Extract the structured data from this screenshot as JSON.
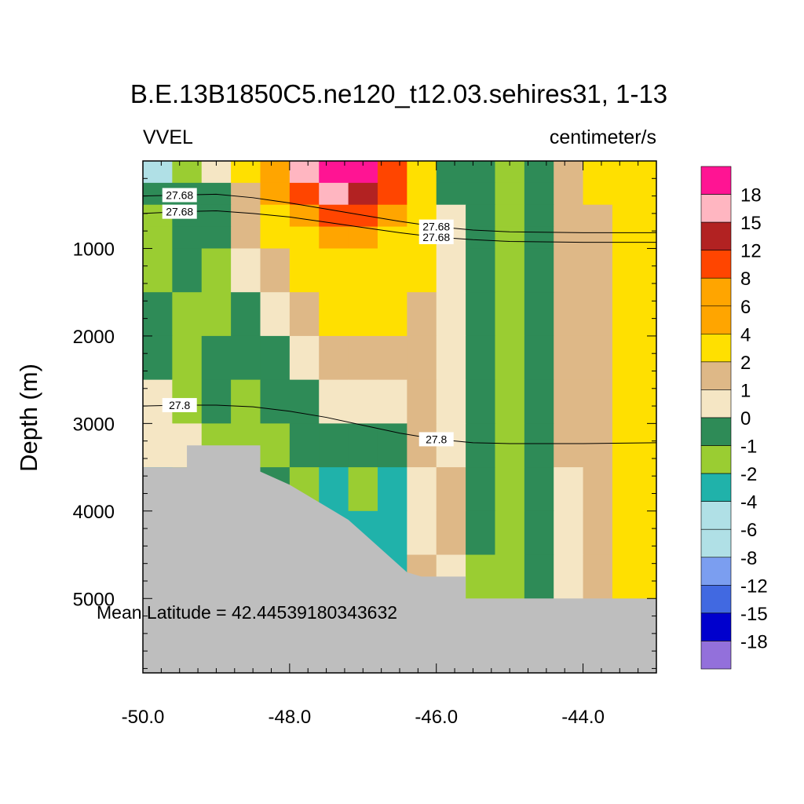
{
  "chart_data": {
    "type": "heatmap",
    "title": "B.E.13B1850C5.ne120_t12.03.sehires31, 1-13",
    "left_label": "VVEL",
    "right_label": "centimeter/s",
    "xlabel": "",
    "ylabel": "Depth (m)",
    "xlim": [
      -50.0,
      -43.0
    ],
    "ylim": [
      5850,
      0
    ],
    "x_ticks": [
      -50.0,
      -48.0,
      -46.0,
      -44.0
    ],
    "x_tick_labels": [
      "-50.0",
      "-48.0",
      "-46.0",
      "-44.0"
    ],
    "y_ticks": [
      1000,
      2000,
      3000,
      4000,
      5000
    ],
    "y_tick_labels": [
      "1000",
      "2000",
      "3000",
      "4000",
      "5000"
    ],
    "annotation": "Mean Latitude = 42.44539180343632",
    "colorbar": {
      "levels": [
        "18",
        "15",
        "12",
        "8",
        "6",
        "4",
        "2",
        "1",
        "0",
        "-1",
        "-2",
        "-4",
        "-6",
        "-8",
        "-12",
        "-15",
        "-18"
      ],
      "colors": [
        "#FF1493",
        "#FFB6C1",
        "#B22222",
        "#FF4500",
        "#FFA500",
        "#FFA500",
        "#FFE000",
        "#DEB887",
        "#F5E6C4",
        "#2E8B57",
        "#9ACD32",
        "#20B2AA",
        "#B0E0E6",
        "#B0E0E6",
        "#7B9EF0",
        "#4169E1",
        "#0000CD",
        "#9370DB"
      ]
    },
    "contours": [
      {
        "label": "27.68",
        "x": [
          -50.0,
          -49.5,
          -49.0,
          -48.5,
          -48.0,
          -47.5,
          -47.0,
          -46.5,
          -46.0,
          -45.5,
          -45.0,
          -44.0,
          -43.0
        ],
        "y": [
          600,
          580,
          570,
          600,
          640,
          700,
          760,
          820,
          870,
          900,
          920,
          930,
          930
        ]
      },
      {
        "label": "27.68",
        "x": [
          -50.0,
          -49.5,
          -49.0,
          -48.5,
          -48.0,
          -47.5,
          -47.0,
          -46.5,
          -46.0,
          -45.5,
          -45.0,
          -44.0,
          -43.0
        ],
        "y": [
          400,
          390,
          380,
          420,
          480,
          550,
          620,
          690,
          750,
          790,
          810,
          820,
          820
        ]
      },
      {
        "label": "27.8",
        "x": [
          -50.0,
          -49.5,
          -49.0,
          -48.5,
          -48.0,
          -47.5,
          -47.0,
          -46.5,
          -46.0,
          -45.5,
          -45.0,
          -44.0,
          -43.0
        ],
        "y": [
          2800,
          2790,
          2790,
          2810,
          2860,
          2930,
          3020,
          3110,
          3180,
          3220,
          3230,
          3230,
          3220
        ]
      }
    ],
    "bathymetry": {
      "x": [
        -50.0,
        -49.4,
        -49.4,
        -48.4,
        -48.4,
        -48.0,
        -47.8,
        -47.6,
        -47.4,
        -47.2,
        -47.0,
        -46.8,
        -46.6,
        -46.4,
        -46.2,
        -46.0,
        -45.6,
        -45.6,
        -43.0
      ],
      "y": [
        3500,
        3500,
        3250,
        3250,
        3550,
        3700,
        3800,
        3900,
        4000,
        4100,
        4250,
        4400,
        4550,
        4700,
        4750,
        4750,
        4750,
        5000,
        5000
      ]
    },
    "field": {
      "x_edges": [
        -50.0,
        -49.6,
        -49.2,
        -48.8,
        -48.4,
        -48.0,
        -47.6,
        -47.2,
        -46.8,
        -46.4,
        -46.0,
        -45.6,
        -45.2,
        -44.8,
        -44.4,
        -44.0,
        -43.6,
        -43.0
      ],
      "depth_edges": [
        0,
        250,
        500,
        750,
        1000,
        1500,
        2000,
        2500,
        3000,
        3500,
        4000,
        4500,
        5000
      ],
      "values": [
        [
          -5,
          -2,
          0.5,
          3,
          7,
          16,
          19,
          19,
          10,
          3,
          -0.5,
          -1,
          -1.5,
          -0.5,
          1.5,
          3,
          3
        ],
        [
          -1,
          -1,
          -0.5,
          1.5,
          5,
          10,
          16,
          14,
          8,
          2.5,
          -0.5,
          -1,
          -1.5,
          -0.5,
          1.5,
          3,
          3
        ],
        [
          -1.5,
          -1,
          -0.5,
          1.5,
          3,
          6,
          9,
          8,
          5,
          2,
          0.5,
          -1,
          -1.5,
          -0.5,
          1.5,
          1.5,
          3
        ],
        [
          -1.5,
          -1,
          -0.5,
          1.5,
          2,
          3,
          4.5,
          4.5,
          3,
          2,
          0.5,
          -1,
          -1.5,
          -0.5,
          1.5,
          1.5,
          3
        ],
        [
          -1.5,
          -0.5,
          -1.5,
          0.5,
          1.5,
          2.5,
          3,
          3,
          3,
          2,
          0.5,
          -1,
          -1.5,
          -0.5,
          1.5,
          1.5,
          3
        ],
        [
          -0.5,
          -1.5,
          -1.5,
          -0.5,
          0.5,
          1.5,
          2.5,
          3,
          2.5,
          1.5,
          0.5,
          -0.5,
          -1.5,
          -0.5,
          1.5,
          1.5,
          3
        ],
        [
          -0.5,
          -1.5,
          -0.5,
          -0.5,
          -0.5,
          0.5,
          1.5,
          1.5,
          1.5,
          1.5,
          0.5,
          -0.5,
          -1.5,
          -0.5,
          1.5,
          1.5,
          3
        ],
        [
          0.5,
          -1.5,
          -0.5,
          -1.5,
          -0.5,
          -0.5,
          0.5,
          0.5,
          0.5,
          1.5,
          0.5,
          -0.5,
          -1.5,
          -0.5,
          1.5,
          1.5,
          3
        ],
        [
          0.5,
          0.5,
          -1.5,
          -1.5,
          -1.5,
          -0.5,
          -0.5,
          -0.5,
          -0.5,
          1.5,
          0.5,
          -0.5,
          -1.5,
          -0.5,
          1.5,
          1.5,
          3
        ],
        [
          -2.5,
          -1.5,
          -2.5,
          -1.5,
          -0.5,
          -1.5,
          -2.5,
          -1.5,
          -2.5,
          0.5,
          1.5,
          -0.5,
          -1.5,
          -0.5,
          0.5,
          1.5,
          3
        ],
        [
          -1.5,
          -1.5,
          -1.5,
          -1.5,
          -1.5,
          -0.5,
          -2.5,
          -2.5,
          -2.5,
          0.5,
          1.5,
          -0.5,
          -1.5,
          -0.5,
          0.5,
          1.5,
          3
        ],
        [
          -1.5,
          -1.5,
          -1.5,
          -1.5,
          -1.5,
          -1.5,
          -2.5,
          -2.5,
          -2.5,
          1.5,
          0.5,
          -1.5,
          -1.5,
          -0.5,
          0.5,
          1.5,
          3
        ]
      ]
    }
  }
}
